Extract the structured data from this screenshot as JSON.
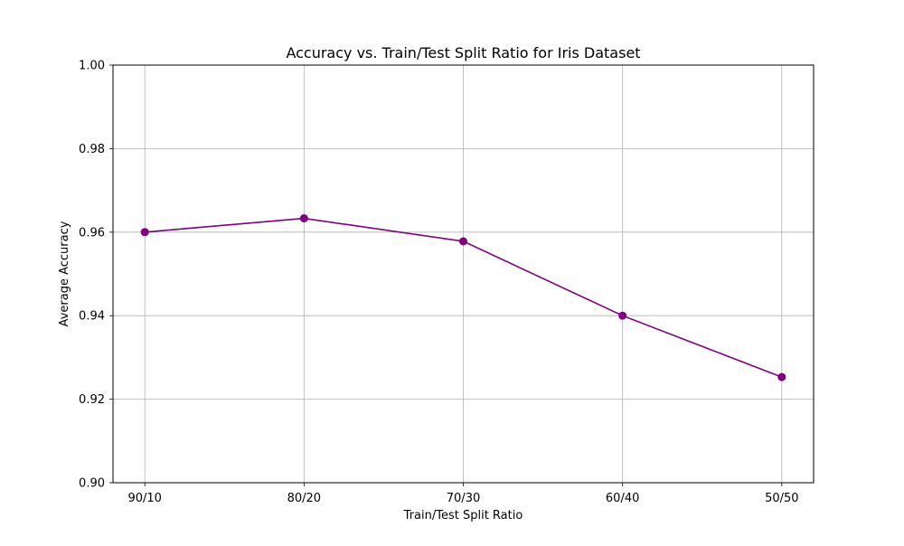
{
  "chart_data": {
    "type": "line",
    "title": "Accuracy vs. Train/Test Split Ratio for Iris Dataset",
    "xlabel": "Train/Test Split Ratio",
    "ylabel": "Average Accuracy",
    "categories": [
      "90/10",
      "80/20",
      "70/30",
      "60/40",
      "50/50"
    ],
    "series": [
      {
        "values": [
          0.96,
          0.9633,
          0.9578,
          0.94,
          0.9253
        ],
        "color": "#800080",
        "marker": "circle"
      }
    ],
    "ylim": [
      0.9,
      1.0
    ],
    "yticks": [
      0.9,
      0.92,
      0.94,
      0.96,
      0.98,
      1.0
    ],
    "ytick_labels": [
      "0.90",
      "0.92",
      "0.94",
      "0.96",
      "0.98",
      "1.00"
    ],
    "grid": true,
    "grid_color": "#b0b0b0"
  }
}
